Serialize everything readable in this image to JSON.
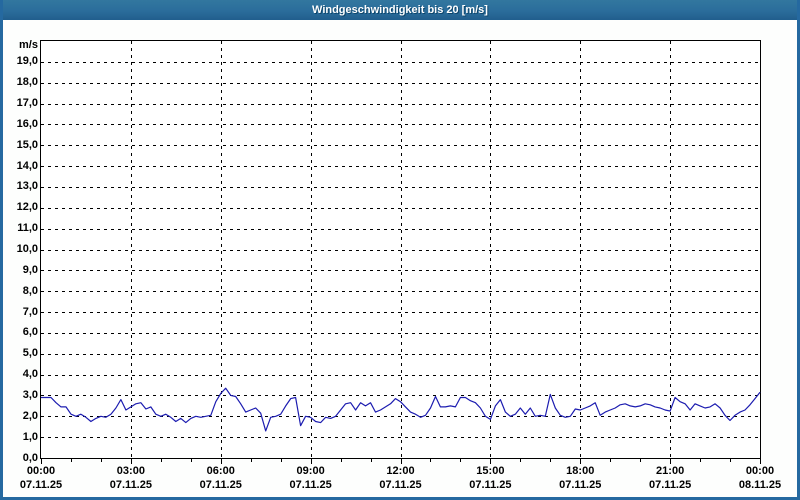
{
  "window": {
    "title": "Windgeschwindigkeit bis 20 [m/s]"
  },
  "colors": {
    "titlebar": "#2b6d9b",
    "titlebar_text": "#ffffff",
    "frame": "#2569a0",
    "plot_border": "#000000",
    "grid": "#000000",
    "line": "#1c1cb0",
    "background": "#fdfefd",
    "label_text": "#000000"
  },
  "chart_data": {
    "type": "line",
    "title": "Windgeschwindigkeit bis 20 [m/s]",
    "unit_label": "m/s",
    "ylim": [
      0,
      20
    ],
    "ytick_step": 1.0,
    "ytick_labels": [
      "0,0",
      "1,0",
      "2,0",
      "3,0",
      "4,0",
      "5,0",
      "6,0",
      "7,0",
      "8,0",
      "9,0",
      "10,0",
      "11,0",
      "12,0",
      "13,0",
      "14,0",
      "15,0",
      "16,0",
      "17,0",
      "18,0",
      "19,0"
    ],
    "x_span_hours": 24,
    "xtick_major_hours": 3,
    "xtick_minor_hours": 1,
    "grid": "dashed",
    "legend": "none",
    "x_major_labels": [
      {
        "time": "00:00",
        "date": "07.11.25"
      },
      {
        "time": "03:00",
        "date": "07.11.25"
      },
      {
        "time": "06:00",
        "date": "07.11.25"
      },
      {
        "time": "09:00",
        "date": "07.11.25"
      },
      {
        "time": "12:00",
        "date": "07.11.25"
      },
      {
        "time": "15:00",
        "date": "07.11.25"
      },
      {
        "time": "18:00",
        "date": "07.11.25"
      },
      {
        "time": "21:00",
        "date": "07.11.25"
      },
      {
        "time": "00:00",
        "date": "08.11.25"
      }
    ],
    "series": [
      {
        "name": "Windgeschwindigkeit",
        "unit": "m/s",
        "interval_minutes": 10,
        "start": "07.11.25 00:00",
        "end": "08.11.25 00:00",
        "values": [
          2.9,
          2.9,
          2.9,
          2.65,
          2.45,
          2.45,
          2.1,
          2.0,
          2.1,
          1.95,
          1.75,
          1.9,
          2.0,
          1.95,
          2.1,
          2.4,
          2.8,
          2.3,
          2.45,
          2.6,
          2.65,
          2.35,
          2.45,
          2.1,
          2.0,
          2.1,
          1.95,
          1.75,
          1.9,
          1.7,
          1.9,
          2.0,
          1.95,
          2.0,
          2.05,
          2.7,
          3.1,
          3.35,
          3.0,
          2.95,
          2.6,
          2.2,
          2.3,
          2.4,
          2.15,
          1.3,
          1.95,
          2.0,
          2.1,
          2.5,
          2.85,
          2.9,
          1.55,
          2.0,
          1.95,
          1.75,
          1.7,
          1.95,
          1.9,
          2.0,
          2.3,
          2.6,
          2.65,
          2.3,
          2.65,
          2.5,
          2.65,
          2.2,
          2.3,
          2.45,
          2.6,
          2.85,
          2.7,
          2.45,
          2.2,
          2.1,
          1.95,
          2.05,
          2.4,
          2.95,
          2.45,
          2.45,
          2.5,
          2.45,
          2.9,
          2.9,
          2.75,
          2.65,
          2.4,
          2.0,
          1.85,
          2.5,
          2.8,
          2.2,
          2.0,
          2.1,
          2.4,
          2.1,
          2.4,
          2.0,
          2.05,
          2.0,
          3.05,
          2.4,
          2.05,
          1.95,
          2.0,
          2.35,
          2.3,
          2.4,
          2.5,
          2.65,
          2.05,
          2.2,
          2.3,
          2.4,
          2.55,
          2.6,
          2.5,
          2.45,
          2.5,
          2.6,
          2.55,
          2.45,
          2.4,
          2.3,
          2.25,
          2.9,
          2.7,
          2.6,
          2.3,
          2.6,
          2.5,
          2.4,
          2.45,
          2.6,
          2.4,
          2.05,
          1.8,
          2.05,
          2.2,
          2.3,
          2.55,
          2.85,
          3.15
        ]
      }
    ]
  }
}
